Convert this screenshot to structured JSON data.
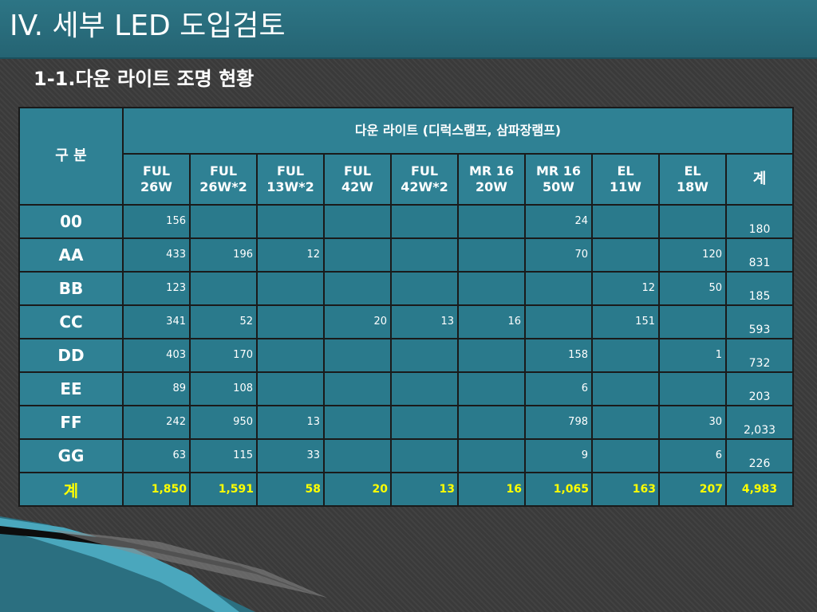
{
  "title": "IV. 세부 LED 도입검토",
  "subtitle": "1-1.다운 라이트 조명 현황",
  "table": {
    "corner_label": "구 분",
    "group_header": "다운 라이트 (디럭스램프, 삼파장램프)",
    "columns": [
      {
        "line1": "FUL",
        "line2": "26W"
      },
      {
        "line1": "FUL",
        "line2": "26W*2"
      },
      {
        "line1": "FUL",
        "line2": "13W*2"
      },
      {
        "line1": "FUL",
        "line2": "42W"
      },
      {
        "line1": "FUL",
        "line2": "42W*2"
      },
      {
        "line1": "MR 16",
        "line2": "20W"
      },
      {
        "line1": "MR 16",
        "line2": "50W"
      },
      {
        "line1": "EL",
        "line2": "11W"
      },
      {
        "line1": "EL",
        "line2": "18W"
      }
    ],
    "total_header": "계",
    "rows": [
      {
        "label": "00",
        "cells": [
          "156",
          "",
          "",
          "",
          "",
          "",
          "24",
          "",
          ""
        ],
        "total": "180"
      },
      {
        "label": "AA",
        "cells": [
          "433",
          "196",
          "12",
          "",
          "",
          "",
          "70",
          "",
          "120"
        ],
        "total": "831"
      },
      {
        "label": "BB",
        "cells": [
          "123",
          "",
          "",
          "",
          "",
          "",
          "",
          "12",
          "50"
        ],
        "total": "185"
      },
      {
        "label": "CC",
        "cells": [
          "341",
          "52",
          "",
          "20",
          "13",
          "16",
          "",
          "151",
          ""
        ],
        "total": "593"
      },
      {
        "label": "DD",
        "cells": [
          "403",
          "170",
          "",
          "",
          "",
          "",
          "158",
          "",
          "1"
        ],
        "total": "732"
      },
      {
        "label": "EE",
        "cells": [
          "89",
          "108",
          "",
          "",
          "",
          "",
          "6",
          "",
          ""
        ],
        "total": "203"
      },
      {
        "label": "FF",
        "cells": [
          "242",
          "950",
          "13",
          "",
          "",
          "",
          "798",
          "",
          "30"
        ],
        "total": "2,033"
      },
      {
        "label": "GG",
        "cells": [
          "63",
          "115",
          "33",
          "",
          "",
          "",
          "9",
          "",
          "6"
        ],
        "total": "226"
      }
    ],
    "sum_row": {
      "label": "계",
      "cells": [
        "1,850",
        "1,591",
        "58",
        "20",
        "13",
        "16",
        "1,065",
        "163",
        "207"
      ],
      "total": "4,983"
    }
  },
  "colors": {
    "title_bar": "#2d7585",
    "header_cell": "#2f8194",
    "data_cell": "#2a7a8c",
    "sum_text": "#ffff00",
    "background": "#3a3a3a"
  }
}
